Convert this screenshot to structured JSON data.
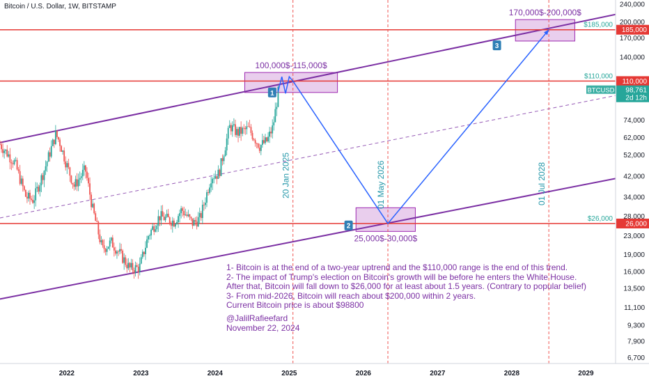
{
  "header": {
    "title": "Bitcoin / U.S. Dollar, 1W, BITSTAMP"
  },
  "colors": {
    "channel": "#7b2fa3",
    "level": "#e53935",
    "path": "#2962ff",
    "zone_fill": "#e1bee7",
    "zone_stroke": "#9c27b0",
    "date_line": "#ef5350",
    "date_text": "#2196a8",
    "up_candle": "#26a69a",
    "down_candle": "#ef5350",
    "badge": "#2f7fb5"
  },
  "annotations": {
    "notes": [
      "1- Bitcoin is at the end of a two-year uptrend and the $110,000 range is the end of this trend.",
      "2- The impact of Trump's election on Bitcoin's growth will be before he enters the White House.",
      "After that, Bitcoin will fall down to $26,000 for at least about 1.5 years. (Contrary to popular belief)",
      "3- From mid-2026, Bitcoin will reach about $200,000 within 2 years.",
      "Current Bitcoin price is about $98800"
    ],
    "author": "@JalilRafieefard",
    "date": "November 22, 2024"
  },
  "chart_data": {
    "type": "line",
    "scale": "log",
    "title": "Bitcoin / U.S. Dollar, 1W, BITSTAMP",
    "x_ticks": [
      "2022",
      "2023",
      "2024",
      "2025",
      "2026",
      "2027",
      "2028",
      "2029"
    ],
    "y_ticks": [
      6700,
      7900,
      9300,
      11100,
      13500,
      16000,
      19000,
      23000,
      28000,
      34000,
      42000,
      52000,
      62000,
      74000,
      140000,
      170000,
      200000,
      240000
    ],
    "ylim": [
      6300,
      250000
    ],
    "xlim": [
      2021.1,
      2029.4
    ],
    "last_price": {
      "label": "BTCUSD",
      "value": 98761,
      "value_text": "98,761",
      "countdown": "2d 12h"
    },
    "levels": [
      {
        "value": 185000,
        "label": "185,000",
        "callout": "$185,000"
      },
      {
        "value": 110000,
        "label": "110,000",
        "callout": "$110,000"
      },
      {
        "value": 26000,
        "label": "26,000",
        "callout": "$26,000"
      }
    ],
    "zones": [
      {
        "label": "100,000$-115,000$",
        "x0": 2024.4,
        "x1": 2025.65,
        "y0": 98000,
        "y1": 120000
      },
      {
        "label": "25,000$-30,000$",
        "x0": 2025.9,
        "x1": 2026.7,
        "y0": 24000,
        "y1": 30500
      },
      {
        "label": "170,000$-200,000$",
        "x0": 2028.05,
        "x1": 2028.85,
        "y0": 165000,
        "y1": 205000
      }
    ],
    "date_lines": [
      {
        "x": 2025.05,
        "label": "20 Jan 2025"
      },
      {
        "x": 2026.33,
        "label": "01 May 2026"
      },
      {
        "x": 2028.5,
        "label": "01 Jul 2028"
      }
    ],
    "channel": {
      "upper": [
        {
          "x": 2021.1,
          "y": 59000
        },
        {
          "x": 2029.4,
          "y": 216000
        }
      ],
      "lower": [
        {
          "x": 2021.1,
          "y": 12100
        },
        {
          "x": 2029.4,
          "y": 41000
        }
      ],
      "mid": [
        {
          "x": 2021.1,
          "y": 27500
        },
        {
          "x": 2029.4,
          "y": 95000
        }
      ]
    },
    "projection": [
      {
        "x": 2024.85,
        "y": 98800
      },
      {
        "x": 2024.9,
        "y": 115000
      },
      {
        "x": 2024.95,
        "y": 97000
      },
      {
        "x": 2025.0,
        "y": 115000
      },
      {
        "x": 2025.05,
        "y": 110000
      },
      {
        "x": 2026.33,
        "y": 26000
      },
      {
        "x": 2028.5,
        "y": 185000
      }
    ],
    "badges": [
      {
        "label": "1",
        "x": 2024.77,
        "y": 98000
      },
      {
        "label": "2",
        "x": 2025.8,
        "y": 25500
      },
      {
        "label": "3",
        "x": 2027.8,
        "y": 158000
      }
    ],
    "price_keypoints": [
      {
        "x": 2021.1,
        "y": 58000
      },
      {
        "x": 2021.3,
        "y": 48000
      },
      {
        "x": 2021.45,
        "y": 34000
      },
      {
        "x": 2021.55,
        "y": 33000
      },
      {
        "x": 2021.7,
        "y": 45000
      },
      {
        "x": 2021.85,
        "y": 64000
      },
      {
        "x": 2021.9,
        "y": 60000
      },
      {
        "x": 2022.0,
        "y": 47000
      },
      {
        "x": 2022.1,
        "y": 38000
      },
      {
        "x": 2022.25,
        "y": 45000
      },
      {
        "x": 2022.35,
        "y": 30000
      },
      {
        "x": 2022.48,
        "y": 20000
      },
      {
        "x": 2022.6,
        "y": 21500
      },
      {
        "x": 2022.7,
        "y": 19500
      },
      {
        "x": 2022.85,
        "y": 16500
      },
      {
        "x": 2022.98,
        "y": 16600
      },
      {
        "x": 2023.1,
        "y": 23000
      },
      {
        "x": 2023.25,
        "y": 28000
      },
      {
        "x": 2023.45,
        "y": 26500
      },
      {
        "x": 2023.55,
        "y": 30000
      },
      {
        "x": 2023.7,
        "y": 26000
      },
      {
        "x": 2023.8,
        "y": 27500
      },
      {
        "x": 2023.95,
        "y": 42000
      },
      {
        "x": 2024.05,
        "y": 43000
      },
      {
        "x": 2024.2,
        "y": 70000
      },
      {
        "x": 2024.3,
        "y": 65000
      },
      {
        "x": 2024.45,
        "y": 68000
      },
      {
        "x": 2024.6,
        "y": 57000
      },
      {
        "x": 2024.7,
        "y": 60000
      },
      {
        "x": 2024.78,
        "y": 69000
      },
      {
        "x": 2024.85,
        "y": 98000
      }
    ]
  }
}
